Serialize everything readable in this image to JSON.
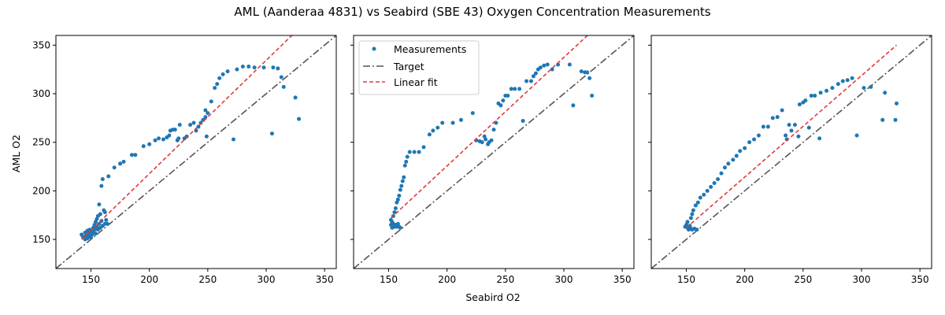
{
  "figure": {
    "title": "AML (Aanderaa 4831) vs Seabird (SBE 43) Oxygen Concentration Measurements",
    "xlabel": "Seabird O2",
    "ylabel": "AML O2"
  },
  "colors": {
    "points": "#1f77b4",
    "target": "#555555",
    "fit": "#e03a3a"
  },
  "legend": {
    "placement": "top-left of middle panel",
    "entries": [
      "Measurements",
      "Target",
      "Linear fit"
    ]
  },
  "chart_data": [
    {
      "type": "scatter",
      "xlim": [
        120,
        360
      ],
      "ylim": [
        120,
        360
      ],
      "xticks": [
        150,
        200,
        250,
        300,
        350
      ],
      "yticks": [
        150,
        200,
        250,
        300,
        350
      ],
      "show_yticks": true,
      "target": [
        [
          120,
          120
        ],
        [
          360,
          360
        ]
      ],
      "fit": [
        [
          142,
          150
        ],
        [
          322,
          360
        ]
      ],
      "points": [
        [
          142,
          155
        ],
        [
          143,
          153
        ],
        [
          144,
          152
        ],
        [
          145,
          157
        ],
        [
          145,
          150
        ],
        [
          146,
          154
        ],
        [
          147,
          159
        ],
        [
          147,
          151
        ],
        [
          148,
          156
        ],
        [
          148,
          153
        ],
        [
          149,
          160
        ],
        [
          150,
          152
        ],
        [
          150,
          157
        ],
        [
          151,
          155
        ],
        [
          152,
          162
        ],
        [
          152,
          158
        ],
        [
          153,
          165
        ],
        [
          153,
          160
        ],
        [
          154,
          168
        ],
        [
          154,
          156
        ],
        [
          155,
          171
        ],
        [
          155,
          163
        ],
        [
          156,
          174
        ],
        [
          156,
          160
        ],
        [
          157,
          166
        ],
        [
          157,
          186
        ],
        [
          158,
          162
        ],
        [
          158,
          176
        ],
        [
          159,
          205
        ],
        [
          159,
          169
        ],
        [
          160,
          212
        ],
        [
          160,
          164
        ],
        [
          161,
          180
        ],
        [
          162,
          166
        ],
        [
          162,
          178
        ],
        [
          163,
          170
        ],
        [
          164,
          166
        ],
        [
          165,
          215
        ],
        [
          170,
          224
        ],
        [
          175,
          228
        ],
        [
          178,
          230
        ],
        [
          185,
          237
        ],
        [
          188,
          237
        ],
        [
          195,
          246
        ],
        [
          200,
          248
        ],
        [
          205,
          252
        ],
        [
          208,
          254
        ],
        [
          212,
          253
        ],
        [
          215,
          255
        ],
        [
          217,
          257
        ],
        [
          218,
          262
        ],
        [
          220,
          263
        ],
        [
          222,
          263
        ],
        [
          224,
          252
        ],
        [
          225,
          254
        ],
        [
          226,
          268
        ],
        [
          230,
          254
        ],
        [
          232,
          256
        ],
        [
          235,
          268
        ],
        [
          238,
          270
        ],
        [
          240,
          262
        ],
        [
          242,
          266
        ],
        [
          244,
          270
        ],
        [
          246,
          273
        ],
        [
          248,
          276
        ],
        [
          248,
          283
        ],
        [
          249,
          256
        ],
        [
          250,
          280
        ],
        [
          253,
          292
        ],
        [
          256,
          306
        ],
        [
          258,
          310
        ],
        [
          260,
          316
        ],
        [
          263,
          320
        ],
        [
          267,
          323
        ],
        [
          272,
          253
        ],
        [
          275,
          325
        ],
        [
          280,
          328
        ],
        [
          285,
          328
        ],
        [
          290,
          327
        ],
        [
          298,
          327
        ],
        [
          305,
          259
        ],
        [
          306,
          327
        ],
        [
          310,
          326
        ],
        [
          313,
          317
        ],
        [
          315,
          307
        ],
        [
          325,
          296
        ],
        [
          328,
          274
        ]
      ]
    },
    {
      "type": "scatter",
      "xlim": [
        120,
        360
      ],
      "ylim": [
        120,
        360
      ],
      "xticks": [
        150,
        200,
        250,
        300,
        350
      ],
      "yticks": [
        150,
        200,
        250,
        300,
        350
      ],
      "show_yticks": false,
      "target": [
        [
          120,
          120
        ],
        [
          360,
          360
        ]
      ],
      "fit": [
        [
          152,
          172
        ],
        [
          322,
          362
        ]
      ],
      "points": [
        [
          152,
          165
        ],
        [
          152,
          170
        ],
        [
          153,
          168
        ],
        [
          153,
          162
        ],
        [
          154,
          174
        ],
        [
          154,
          166
        ],
        [
          155,
          178
        ],
        [
          155,
          163
        ],
        [
          156,
          182
        ],
        [
          156,
          165
        ],
        [
          157,
          188
        ],
        [
          157,
          163
        ],
        [
          158,
          191
        ],
        [
          158,
          166
        ],
        [
          159,
          195
        ],
        [
          159,
          163
        ],
        [
          160,
          201
        ],
        [
          160,
          162
        ],
        [
          161,
          205
        ],
        [
          162,
          210
        ],
        [
          163,
          214
        ],
        [
          164,
          226
        ],
        [
          165,
          230
        ],
        [
          166,
          235
        ],
        [
          168,
          240
        ],
        [
          172,
          240
        ],
        [
          176,
          240
        ],
        [
          180,
          245
        ],
        [
          185,
          258
        ],
        [
          188,
          262
        ],
        [
          192,
          265
        ],
        [
          196,
          270
        ],
        [
          205,
          270
        ],
        [
          212,
          273
        ],
        [
          222,
          280
        ],
        [
          225,
          252
        ],
        [
          228,
          251
        ],
        [
          230,
          250
        ],
        [
          232,
          256
        ],
        [
          233,
          253
        ],
        [
          235,
          248
        ],
        [
          236,
          250
        ],
        [
          238,
          252
        ],
        [
          240,
          263
        ],
        [
          242,
          270
        ],
        [
          244,
          290
        ],
        [
          246,
          288
        ],
        [
          248,
          293
        ],
        [
          250,
          298
        ],
        [
          252,
          298
        ],
        [
          255,
          305
        ],
        [
          258,
          305
        ],
        [
          262,
          305
        ],
        [
          265,
          272
        ],
        [
          268,
          313
        ],
        [
          272,
          313
        ],
        [
          274,
          318
        ],
        [
          276,
          321
        ],
        [
          278,
          325
        ],
        [
          280,
          327
        ],
        [
          283,
          329
        ],
        [
          286,
          330
        ],
        [
          290,
          325
        ],
        [
          295,
          330
        ],
        [
          305,
          330
        ],
        [
          308,
          288
        ],
        [
          315,
          323
        ],
        [
          318,
          322
        ],
        [
          320,
          322
        ],
        [
          322,
          316
        ],
        [
          324,
          298
        ]
      ]
    },
    {
      "type": "scatter",
      "xlim": [
        120,
        360
      ],
      "ylim": [
        120,
        360
      ],
      "xticks": [
        150,
        200,
        250,
        300,
        350
      ],
      "yticks": [
        150,
        200,
        250,
        300,
        350
      ],
      "show_yticks": false,
      "target": [
        [
          120,
          120
        ],
        [
          360,
          360
        ]
      ],
      "fit": [
        [
          150,
          162
        ],
        [
          330,
          350
        ]
      ],
      "points": [
        [
          149,
          163
        ],
        [
          150,
          165
        ],
        [
          151,
          162
        ],
        [
          151,
          168
        ],
        [
          152,
          160
        ],
        [
          153,
          164
        ],
        [
          154,
          172
        ],
        [
          154,
          161
        ],
        [
          155,
          176
        ],
        [
          155,
          160
        ],
        [
          156,
          180
        ],
        [
          157,
          161
        ],
        [
          158,
          185
        ],
        [
          159,
          160
        ],
        [
          160,
          188
        ],
        [
          162,
          193
        ],
        [
          165,
          196
        ],
        [
          168,
          200
        ],
        [
          171,
          204
        ],
        [
          174,
          208
        ],
        [
          177,
          212
        ],
        [
          180,
          218
        ],
        [
          183,
          224
        ],
        [
          186,
          228
        ],
        [
          190,
          232
        ],
        [
          193,
          236
        ],
        [
          196,
          241
        ],
        [
          200,
          244
        ],
        [
          204,
          250
        ],
        [
          208,
          253
        ],
        [
          212,
          257
        ],
        [
          216,
          266
        ],
        [
          220,
          266
        ],
        [
          224,
          275
        ],
        [
          228,
          276
        ],
        [
          232,
          283
        ],
        [
          235,
          257
        ],
        [
          236,
          253
        ],
        [
          238,
          268
        ],
        [
          240,
          262
        ],
        [
          243,
          268
        ],
        [
          246,
          256
        ],
        [
          247,
          289
        ],
        [
          250,
          291
        ],
        [
          252,
          293
        ],
        [
          255,
          265
        ],
        [
          257,
          298
        ],
        [
          260,
          298
        ],
        [
          264,
          254
        ],
        [
          265,
          301
        ],
        [
          270,
          303
        ],
        [
          275,
          306
        ],
        [
          280,
          310
        ],
        [
          284,
          313
        ],
        [
          288,
          314
        ],
        [
          292,
          316
        ],
        [
          296,
          257
        ],
        [
          302,
          306
        ],
        [
          308,
          307
        ],
        [
          318,
          273
        ],
        [
          320,
          301
        ],
        [
          329,
          273
        ],
        [
          330,
          290
        ]
      ]
    }
  ]
}
